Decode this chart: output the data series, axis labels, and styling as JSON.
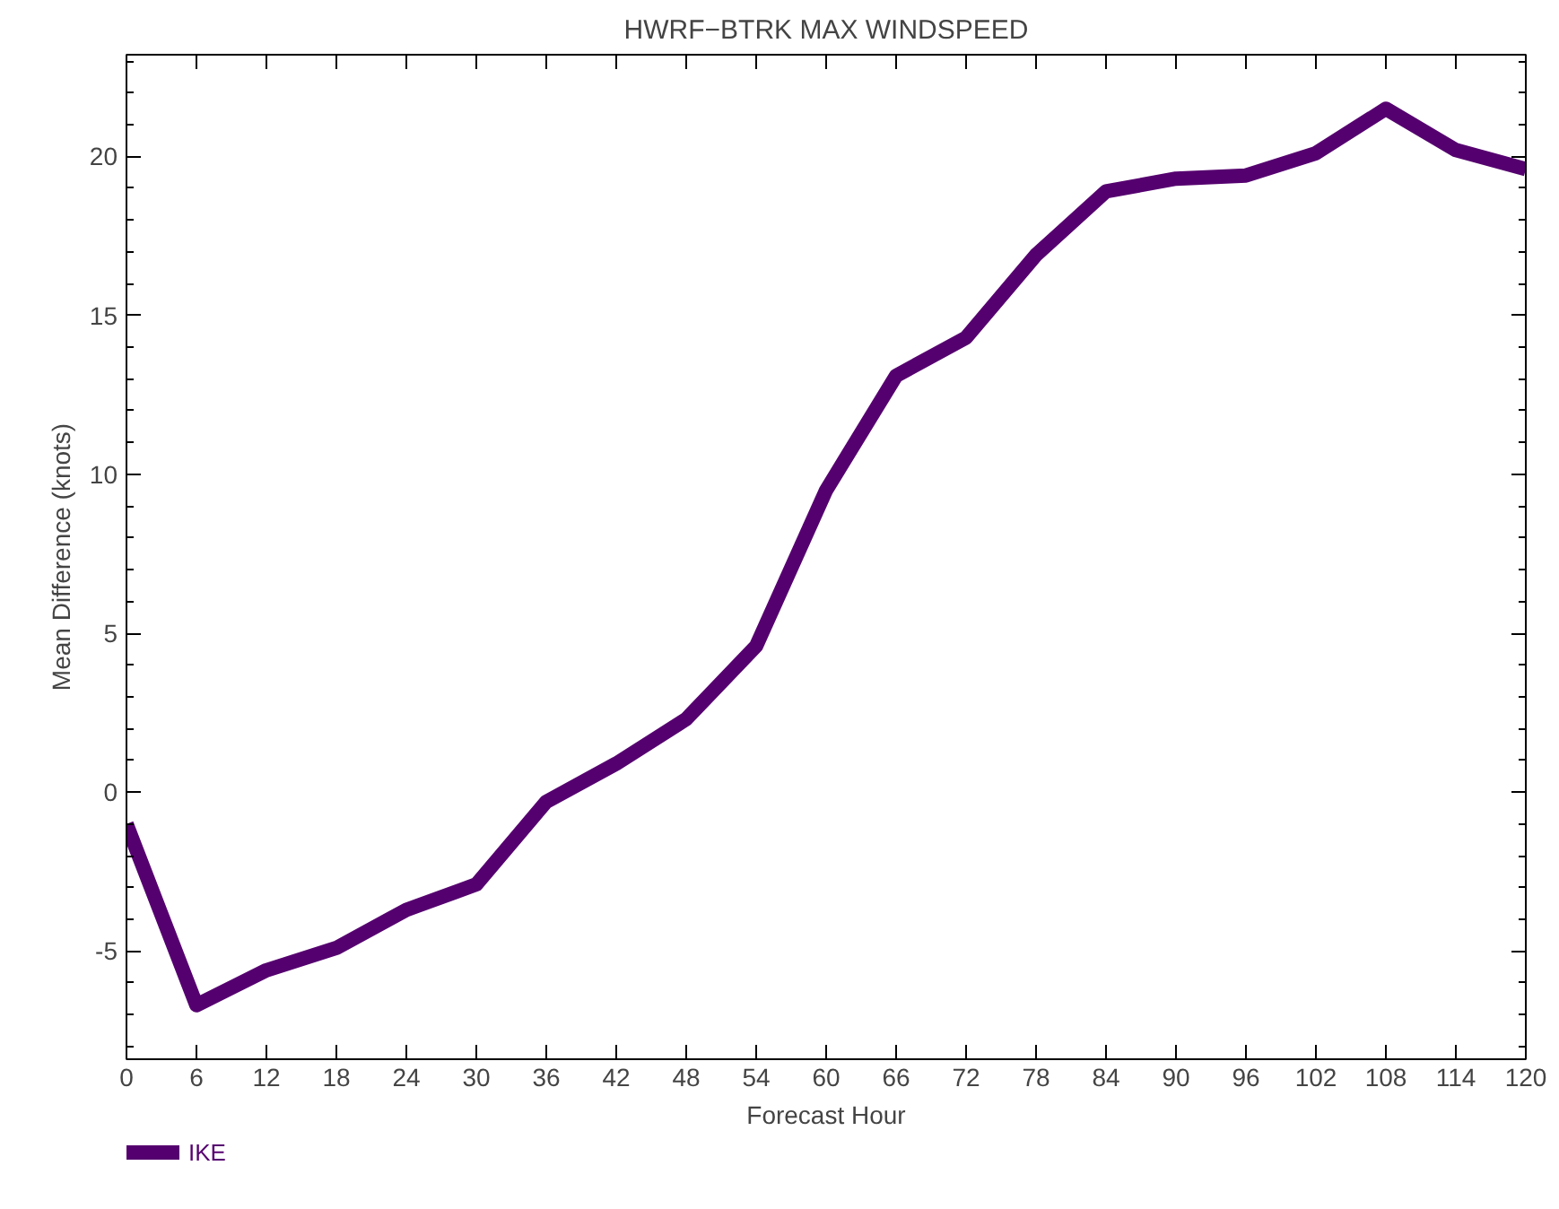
{
  "chart_data": {
    "type": "line",
    "title": "HWRF−BTRK MAX WINDSPEED",
    "xlabel": "Forecast Hour",
    "ylabel": "Mean Difference (knots)",
    "x": [
      0,
      6,
      12,
      18,
      24,
      30,
      36,
      42,
      48,
      54,
      60,
      66,
      72,
      78,
      84,
      90,
      96,
      102,
      108,
      114,
      120
    ],
    "series": [
      {
        "name": "IKE",
        "color": "#55006f",
        "values": [
          -1.0,
          -6.7,
          -5.6,
          -4.9,
          -3.7,
          -2.9,
          -0.3,
          0.9,
          2.3,
          4.6,
          9.5,
          13.1,
          14.3,
          16.9,
          18.9,
          19.3,
          19.4,
          20.1,
          21.5,
          20.2,
          19.6
        ]
      }
    ],
    "xlim": [
      0,
      120
    ],
    "xticks": [
      0,
      6,
      12,
      18,
      24,
      30,
      36,
      42,
      48,
      54,
      60,
      66,
      72,
      78,
      84,
      90,
      96,
      102,
      108,
      114,
      120
    ],
    "ylim": [
      -8.4,
      23.2
    ],
    "yticks": [
      -5,
      0,
      5,
      10,
      15,
      20
    ],
    "grid": false,
    "legend": "bottom left",
    "marker": "none",
    "line_style": "solid"
  }
}
